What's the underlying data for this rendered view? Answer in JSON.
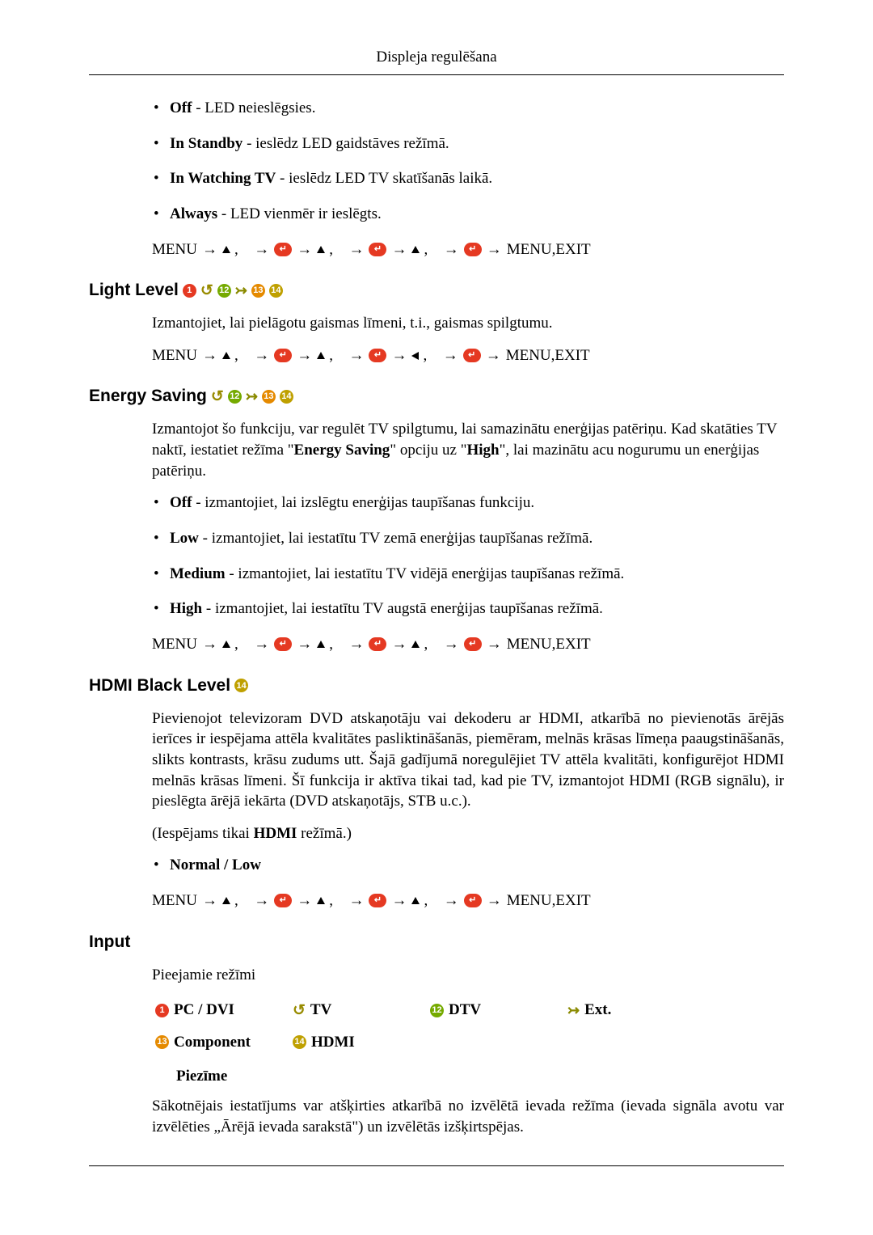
{
  "page": {
    "running_head": "Displeja regulēšana"
  },
  "colors": {
    "red": "#e53922",
    "green": "#75aa00",
    "orange": "#e58a00",
    "yellow": "#bfa000",
    "loop": "#988b00",
    "back": "#f0b800"
  },
  "led": {
    "items": [
      {
        "label": "Off",
        "desc": " - LED neieslēgsies."
      },
      {
        "label": "In Standby",
        "desc": " - ieslēdz LED gaidstāves režīmā."
      },
      {
        "label": "In Watching TV",
        "desc": " - ieslēdz LED TV skatīšanās laikā."
      },
      {
        "label": "Always",
        "desc": " - LED vienmēr ir ieslēgts."
      }
    ],
    "path_end": "MENU,EXIT"
  },
  "light": {
    "title": "Light Level ",
    "desc": "Izmantojiet, lai pielāgotu gaismas līmeni, t.i., gaismas spilgtumu.",
    "path_end": "MENU,EXIT"
  },
  "energy": {
    "title": "Energy Saving",
    "desc_a": "Izmantojot šo funkciju, var regulēt TV spilgtumu, lai samazinātu enerģijas patēriņu. Kad skatāties TV naktī, iestatiet režīma \"",
    "desc_b": "Energy Saving",
    "desc_c": "\" opciju uz \"",
    "desc_d": "High",
    "desc_e": "\", lai mazinātu acu nogurumu un enerģijas patēriņu.",
    "items": [
      {
        "label": "Off",
        "desc": " - izmantojiet, lai izslēgtu enerģijas taupīšanas funkciju."
      },
      {
        "label": "Low",
        "desc": " - izmantojiet, lai iestatītu TV zemā enerģijas taupīšanas režīmā."
      },
      {
        "label": "Medium",
        "desc": " - izmantojiet, lai iestatītu TV vidējā enerģijas taupīšanas režīmā."
      },
      {
        "label": "High",
        "desc": " - izmantojiet, lai iestatītu TV augstā enerģijas taupīšanas režīmā."
      }
    ],
    "path_end": "MENU,EXIT"
  },
  "hdmi": {
    "title": "HDMI Black Level ",
    "desc": "Pievienojot televizoram DVD atskaņotāju vai dekoderu ar HDMI, atkarībā no pievienotās ārējās ierīces ir iespējama attēla kvalitātes pasliktināšanās, piemēram, melnās krāsas līmeņa paaugstināšanās, slikts kontrasts, krāsu zudums utt. Šajā gadījumā noregulējiet TV attēla kvalitāti, konfigurējot HDMI melnās krāsas līmeni. Šī funkcija ir aktīva tikai tad, kad pie TV, izmantojot HDMI (RGB signālu), ir pieslēgta ārējā iekārta (DVD atskaņotājs, STB u.c.).",
    "only_a": "(Iespējams tikai ",
    "only_b": "HDMI",
    "only_c": " režīmā.)",
    "item": "Normal / Low",
    "path_end": "MENU,EXIT"
  },
  "input": {
    "title": "Input",
    "desc": "Pieejamie režīmi",
    "modes": {
      "pcdvi": "PC / DVI",
      "tv": "TV",
      "dtv": "DTV",
      "ext": "Ext.",
      "component": "Component",
      "hdmi": "HDMI"
    },
    "note_title": "Piezīme",
    "note": "Sākotnējais iestatījums var atšķirties atkarībā no izvēlētā ievada režīma (ievada signāla avotu var izvēlēties „Ārējā ievada sarakstā\") un izvēlētās izšķirtspējas."
  },
  "nav": {
    "menu": "MENU"
  }
}
